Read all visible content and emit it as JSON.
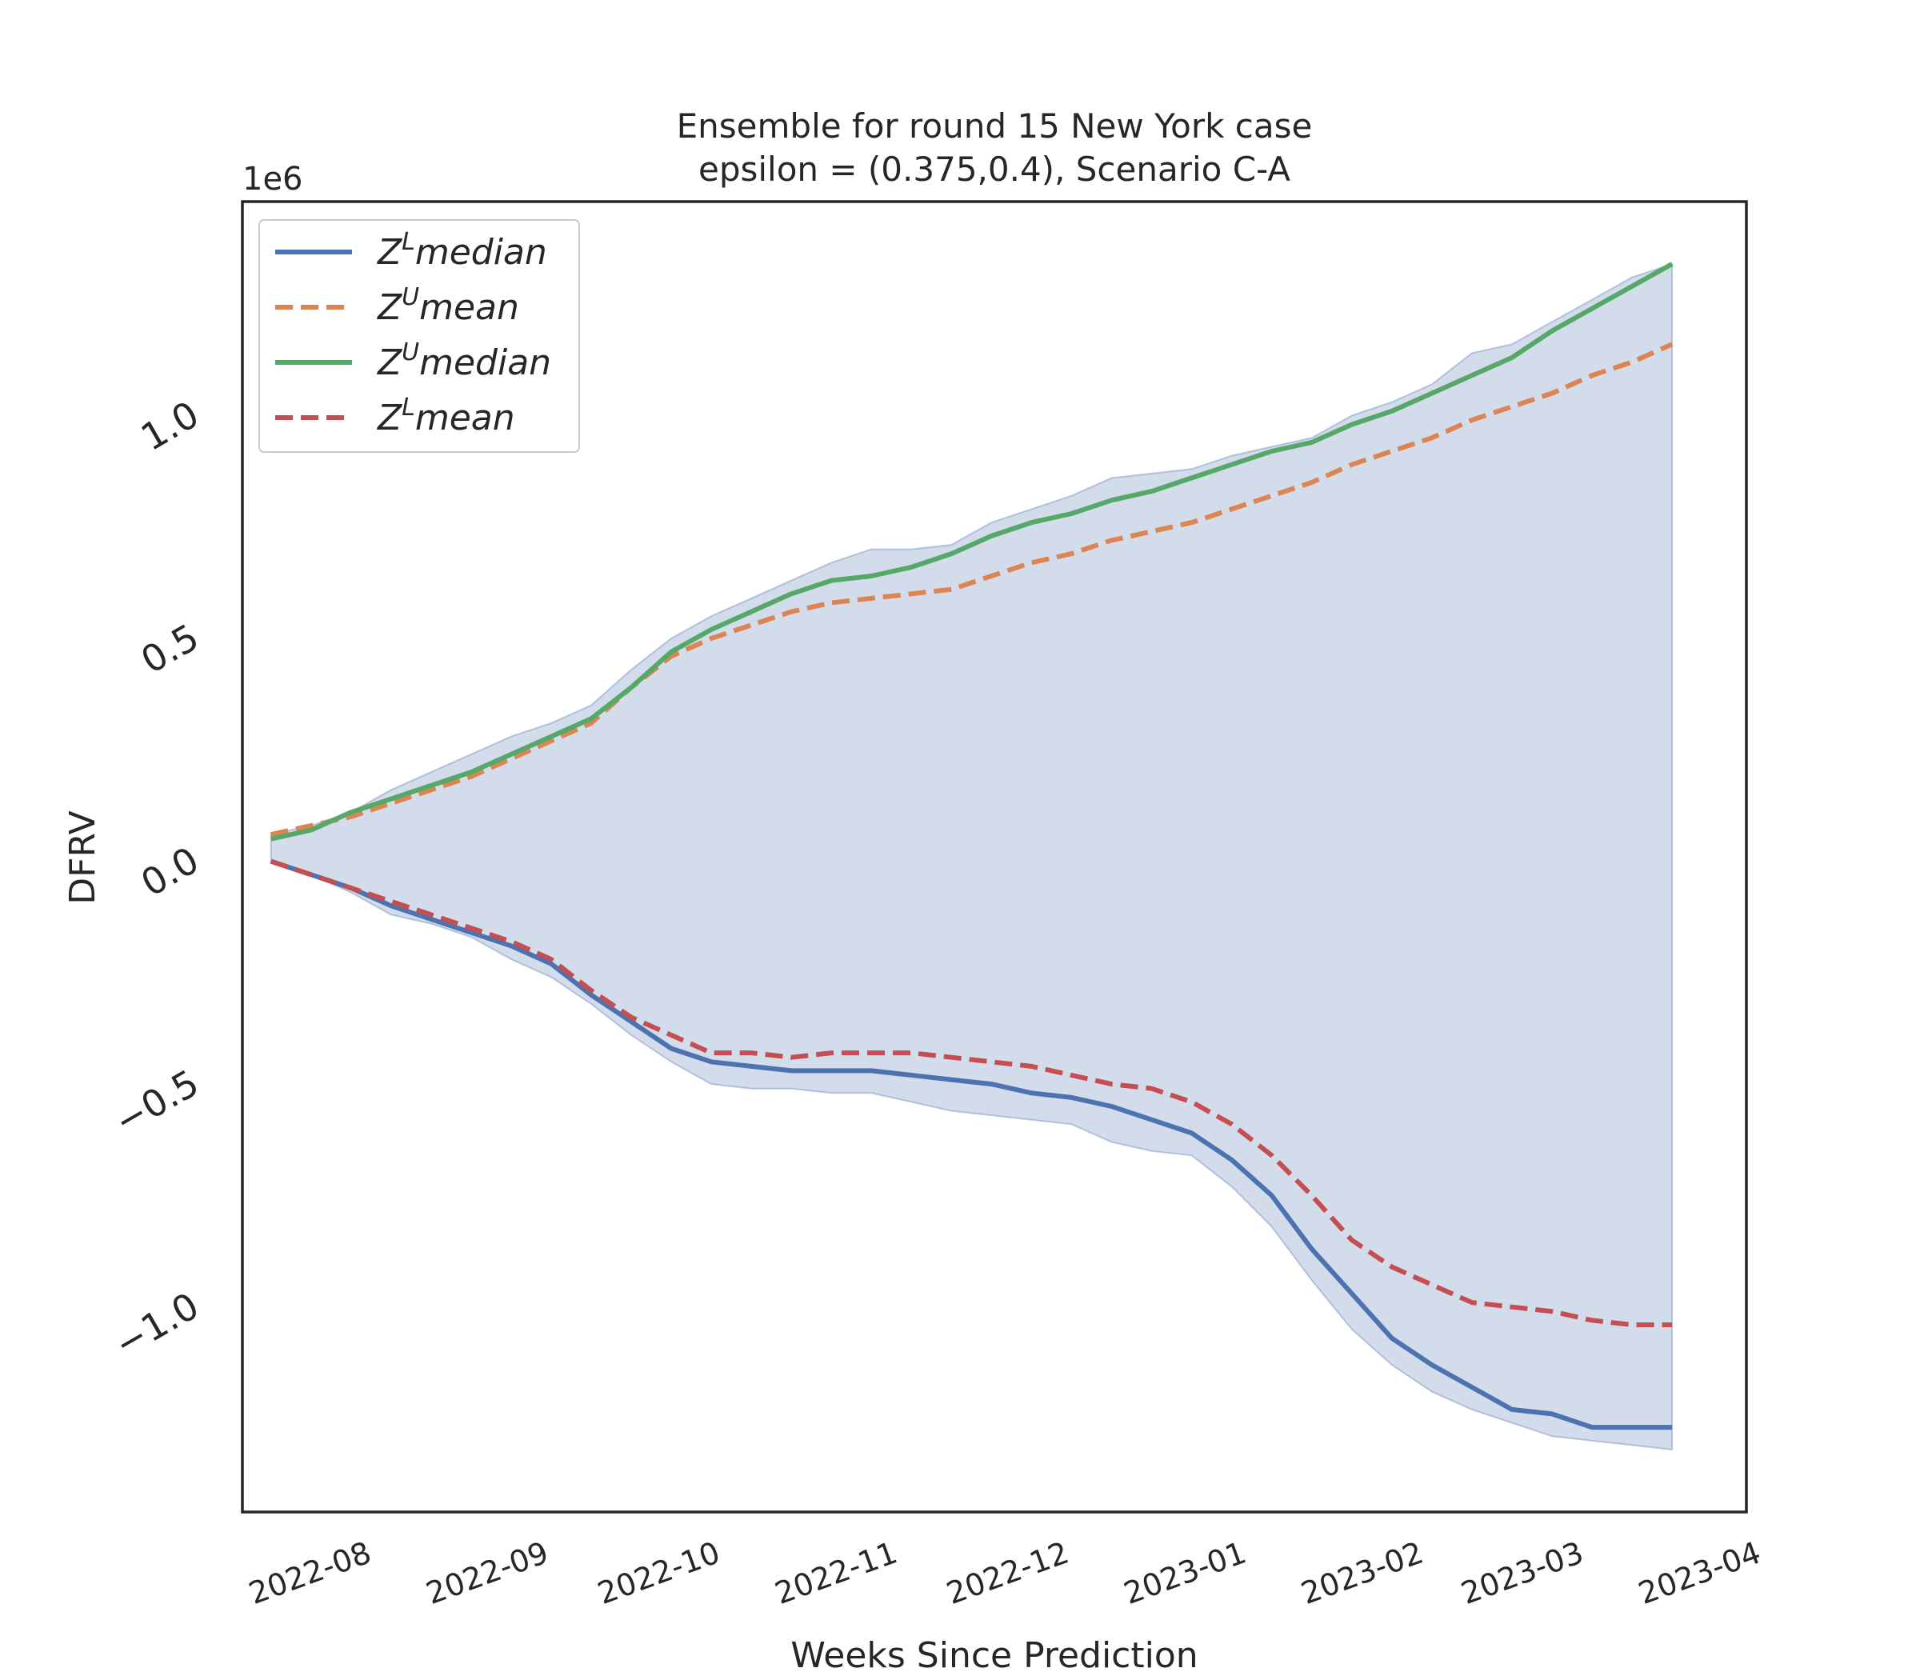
{
  "chart_data": {
    "type": "line",
    "title_line1": "Ensemble for round 15 New York  case",
    "title_line2": "epsilon = (0.375,0.4), Scenario C-A",
    "xlabel": "Weeks Since Prediction",
    "ylabel": "DFRV",
    "y_offset_label": "1e6",
    "xlim": [
      "2022-07-18",
      "2023-04-07"
    ],
    "ylim": [
      -1.47,
      1.47
    ],
    "x_ticks": [
      "2022-08",
      "2022-09",
      "2022-10",
      "2022-11",
      "2022-12",
      "2023-01",
      "2023-02",
      "2023-03",
      "2023-04"
    ],
    "y_ticks": [
      -1.0,
      -0.5,
      0.0,
      0.5,
      1.0
    ],
    "y_tick_labels": [
      "−1.0",
      "−0.5",
      "0.0",
      "0.5",
      "1.0"
    ],
    "grid": false,
    "legend_position": "top-left",
    "x": [
      "2022-07-23",
      "2022-07-30",
      "2022-08-06",
      "2022-08-13",
      "2022-08-20",
      "2022-08-27",
      "2022-09-03",
      "2022-09-10",
      "2022-09-17",
      "2022-09-24",
      "2022-10-01",
      "2022-10-08",
      "2022-10-15",
      "2022-10-22",
      "2022-10-29",
      "2022-11-05",
      "2022-11-12",
      "2022-11-19",
      "2022-11-26",
      "2022-12-03",
      "2022-12-10",
      "2022-12-17",
      "2022-12-24",
      "2022-12-31",
      "2023-01-07",
      "2023-01-14",
      "2023-01-21",
      "2023-01-28",
      "2023-02-04",
      "2023-02-11",
      "2023-02-18",
      "2023-02-25",
      "2023-03-04",
      "2023-03-11",
      "2023-03-18",
      "2023-03-25"
    ],
    "series": [
      {
        "name": "Z^L median",
        "label_base": "Z",
        "label_sup": "L",
        "label_rest": "median",
        "color": "#4c72b0",
        "style": "solid",
        "values": [
          -0.01,
          -0.04,
          -0.07,
          -0.11,
          -0.14,
          -0.17,
          -0.2,
          -0.24,
          -0.31,
          -0.37,
          -0.43,
          -0.46,
          -0.47,
          -0.48,
          -0.48,
          -0.48,
          -0.49,
          -0.5,
          -0.51,
          -0.53,
          -0.54,
          -0.56,
          -0.59,
          -0.62,
          -0.68,
          -0.76,
          -0.88,
          -0.98,
          -1.08,
          -1.14,
          -1.19,
          -1.24,
          -1.25,
          -1.28,
          -1.28,
          -1.28
        ]
      },
      {
        "name": "Z^U mean",
        "label_base": "Z",
        "label_sup": "U",
        "label_rest": "mean",
        "color": "#dd8452",
        "style": "dashed",
        "values": [
          0.05,
          0.07,
          0.09,
          0.12,
          0.15,
          0.18,
          0.22,
          0.26,
          0.3,
          0.38,
          0.45,
          0.49,
          0.52,
          0.55,
          0.57,
          0.58,
          0.59,
          0.6,
          0.63,
          0.66,
          0.68,
          0.71,
          0.73,
          0.75,
          0.78,
          0.81,
          0.84,
          0.88,
          0.91,
          0.94,
          0.98,
          1.01,
          1.04,
          1.08,
          1.11,
          1.15
        ]
      },
      {
        "name": "Z^U median",
        "label_base": "Z",
        "label_sup": "U",
        "label_rest": "median",
        "color": "#55a868",
        "style": "solid",
        "values": [
          0.04,
          0.06,
          0.1,
          0.13,
          0.16,
          0.19,
          0.23,
          0.27,
          0.31,
          0.38,
          0.46,
          0.51,
          0.55,
          0.59,
          0.62,
          0.63,
          0.65,
          0.68,
          0.72,
          0.75,
          0.77,
          0.8,
          0.82,
          0.85,
          0.88,
          0.91,
          0.93,
          0.97,
          1.0,
          1.04,
          1.08,
          1.12,
          1.18,
          1.23,
          1.28,
          1.33
        ]
      },
      {
        "name": "Z^L mean",
        "label_base": "Z",
        "label_sup": "L",
        "label_rest": "mean",
        "color": "#c44e52",
        "style": "dashed",
        "values": [
          -0.01,
          -0.04,
          -0.07,
          -0.1,
          -0.13,
          -0.16,
          -0.19,
          -0.23,
          -0.3,
          -0.36,
          -0.4,
          -0.44,
          -0.44,
          -0.45,
          -0.44,
          -0.44,
          -0.44,
          -0.45,
          -0.46,
          -0.47,
          -0.49,
          -0.51,
          -0.52,
          -0.55,
          -0.6,
          -0.67,
          -0.76,
          -0.86,
          -0.92,
          -0.96,
          -1.0,
          -1.01,
          -1.02,
          -1.04,
          -1.05,
          -1.05
        ]
      }
    ],
    "band": {
      "color": "#4c72b0",
      "opacity": 0.25,
      "upper": [
        0.05,
        0.07,
        0.1,
        0.15,
        0.19,
        0.23,
        0.27,
        0.3,
        0.34,
        0.42,
        0.49,
        0.54,
        0.58,
        0.62,
        0.66,
        0.69,
        0.69,
        0.7,
        0.75,
        0.78,
        0.81,
        0.85,
        0.86,
        0.87,
        0.9,
        0.92,
        0.94,
        0.99,
        1.02,
        1.06,
        1.13,
        1.15,
        1.2,
        1.25,
        1.3,
        1.33
      ],
      "lower": [
        -0.01,
        -0.04,
        -0.08,
        -0.13,
        -0.15,
        -0.18,
        -0.23,
        -0.27,
        -0.33,
        -0.4,
        -0.46,
        -0.51,
        -0.52,
        -0.52,
        -0.53,
        -0.53,
        -0.55,
        -0.57,
        -0.58,
        -0.59,
        -0.6,
        -0.64,
        -0.66,
        -0.67,
        -0.74,
        -0.83,
        -0.95,
        -1.06,
        -1.14,
        -1.2,
        -1.24,
        -1.27,
        -1.3,
        -1.31,
        -1.32,
        -1.33
      ]
    }
  }
}
